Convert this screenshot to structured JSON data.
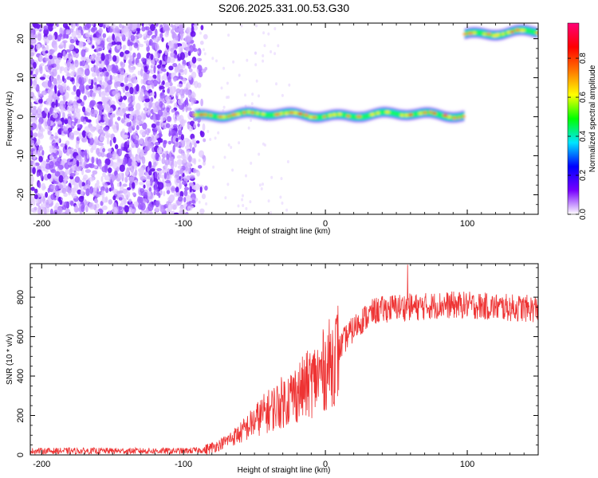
{
  "title": "S206.2025.331.00.53.G30",
  "chart_data": [
    {
      "type": "heatmap",
      "xlabel": "Height of straight line (km)",
      "ylabel": "Frequency (Hz)",
      "xlim": [
        -208,
        150
      ],
      "ylim": [
        -25,
        24
      ],
      "xticks": [
        -200,
        -100,
        0,
        100
      ],
      "xtick_labels": [
        "-200",
        "-100",
        "0",
        "100"
      ],
      "yticks": [
        -20,
        -10,
        0,
        10,
        20
      ],
      "ytick_labels": [
        "-20",
        "-10",
        "0",
        "10",
        "20"
      ],
      "colorbar": {
        "label": "Normalized spectral amplitude",
        "range": [
          0.0,
          0.98
        ],
        "ticks": [
          0.0,
          0.2,
          0.4,
          0.6,
          0.8
        ],
        "tick_labels": [
          "0.0",
          "0.2",
          "0.4",
          "0.6",
          "0.8"
        ],
        "colormap": [
          "#ffffff",
          "#7700ff",
          "#0000ff",
          "#00e5ff",
          "#00ff00",
          "#ffff00",
          "#ff7700",
          "#ff0000",
          "#ff0077"
        ]
      },
      "features": [
        {
          "name": "noise",
          "x_range": [
            -208,
            -92
          ],
          "y_range": [
            -25,
            24
          ],
          "amplitude": [
            0.05,
            0.15
          ]
        },
        {
          "name": "carrier-1",
          "x_range": [
            -92,
            98
          ],
          "frequency": 0.5,
          "amplitude": [
            0.3,
            0.9
          ]
        },
        {
          "name": "carrier-2",
          "x_range": [
            98,
            150
          ],
          "frequency": 21.5,
          "amplitude": [
            0.3,
            0.9
          ]
        }
      ]
    },
    {
      "type": "line",
      "xlabel": "Height of straight line (km)",
      "ylabel": "SNR (10 * v/v)",
      "xlim": [
        -208,
        150
      ],
      "ylim": [
        0,
        970
      ],
      "xticks": [
        -200,
        -100,
        0,
        100
      ],
      "xtick_labels": [
        "-200",
        "-100",
        "0",
        "100"
      ],
      "yticks": [
        0,
        200,
        400,
        600,
        800
      ],
      "ytick_labels": [
        "0",
        "200",
        "400",
        "600",
        "800"
      ],
      "color": "#ee3333",
      "profile": [
        [
          -208,
          20
        ],
        [
          -100,
          20
        ],
        [
          -85,
          25
        ],
        [
          -75,
          50
        ],
        [
          -60,
          110
        ],
        [
          -45,
          200
        ],
        [
          -30,
          270
        ],
        [
          -15,
          340
        ],
        [
          -5,
          400
        ],
        [
          5,
          480
        ],
        [
          15,
          600
        ],
        [
          25,
          680
        ],
        [
          35,
          730
        ],
        [
          50,
          750
        ],
        [
          65,
          750
        ],
        [
          80,
          760
        ],
        [
          100,
          760
        ],
        [
          120,
          750
        ],
        [
          150,
          740
        ]
      ],
      "peak": [
        58,
        965
      ]
    }
  ]
}
